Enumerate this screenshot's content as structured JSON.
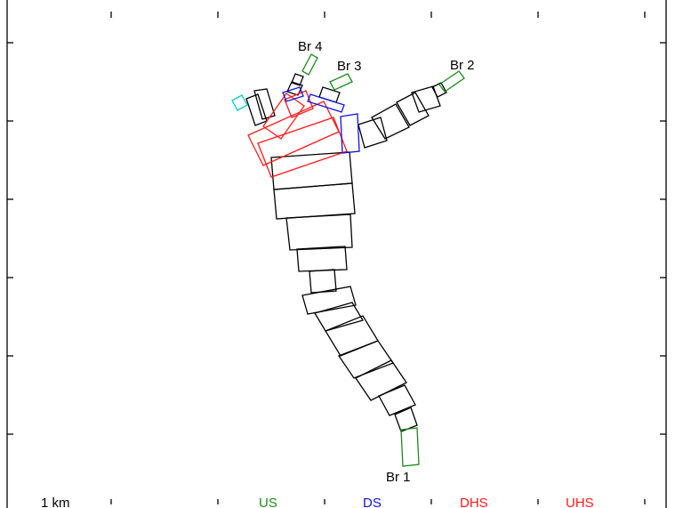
{
  "colors": {
    "frame": "#000000",
    "black_segment": "#000000",
    "us": "#1a8a1a",
    "ds": "#1010e0",
    "dhs": "#ff1a1a",
    "uhs": "#ff1a1a",
    "cyan": "#00cccc"
  },
  "branches": [
    {
      "id": "br1",
      "label": "Br 1"
    },
    {
      "id": "br2",
      "label": "Br 2"
    },
    {
      "id": "br3",
      "label": "Br 3"
    },
    {
      "id": "br4",
      "label": "Br 4"
    }
  ],
  "legend": {
    "scale": "1 km",
    "us": "US",
    "ds": "DS",
    "dhs": "DHS",
    "uhs": "UHS"
  }
}
